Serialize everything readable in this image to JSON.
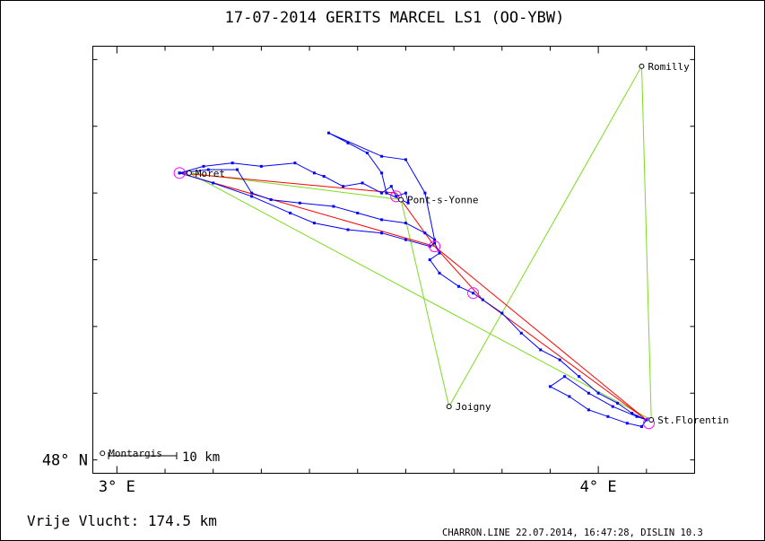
{
  "chart_data": {
    "type": "line",
    "title": "17-07-2014   GERITS MARCEL   LS1 (OO-YBW)",
    "x_ticks": [
      {
        "value": 3.0,
        "label": "3° E"
      },
      {
        "value": 4.0,
        "label": "4° E"
      }
    ],
    "y_ticks": [
      {
        "value": 48.0,
        "label": "48° N"
      }
    ],
    "xlim": [
      2.95,
      4.2
    ],
    "ylim": [
      47.98,
      48.62
    ],
    "scale_bar": {
      "label": "10 km",
      "length_km": 10
    },
    "places": [
      {
        "name": "Romilly",
        "lon": 4.09,
        "lat": 48.59
      },
      {
        "name": "Moret",
        "lon": 3.15,
        "lat": 48.43
      },
      {
        "name": "Pont-s-Yonne",
        "lon": 3.59,
        "lat": 48.39
      },
      {
        "name": "Joigny",
        "lon": 3.69,
        "lat": 48.08
      },
      {
        "name": "St.Florentin",
        "lon": 4.11,
        "lat": 48.06
      },
      {
        "name": "Montargis",
        "lon": 2.97,
        "lat": 48.01
      }
    ],
    "series": [
      {
        "type": "declared-task",
        "color": "#7ddc1f",
        "points": [
          {
            "lon": 3.15,
            "lat": 48.43
          },
          {
            "lon": 3.59,
            "lat": 48.39
          },
          {
            "lon": 3.69,
            "lat": 48.08
          },
          {
            "lon": 4.09,
            "lat": 48.59
          },
          {
            "lon": 4.11,
            "lat": 48.06
          },
          {
            "lon": 3.15,
            "lat": 48.43
          }
        ]
      },
      {
        "type": "optimised-route",
        "color": "#ff0000",
        "points": [
          {
            "lon": 3.13,
            "lat": 48.43
          },
          {
            "lon": 3.58,
            "lat": 48.4
          },
          {
            "lon": 3.66,
            "lat": 48.32
          },
          {
            "lon": 3.13,
            "lat": 48.43
          },
          {
            "lon": 3.66,
            "lat": 48.32
          },
          {
            "lon": 3.76,
            "lat": 48.24
          },
          {
            "lon": 4.1,
            "lat": 48.06
          },
          {
            "lon": 3.66,
            "lat": 48.32
          }
        ]
      },
      {
        "type": "flight-track",
        "color": "#0000ff",
        "points": [
          {
            "lon": 3.13,
            "lat": 48.43
          },
          {
            "lon": 3.18,
            "lat": 48.44
          },
          {
            "lon": 3.24,
            "lat": 48.445
          },
          {
            "lon": 3.3,
            "lat": 48.44
          },
          {
            "lon": 3.37,
            "lat": 48.445
          },
          {
            "lon": 3.41,
            "lat": 48.43
          },
          {
            "lon": 3.43,
            "lat": 48.425
          },
          {
            "lon": 3.47,
            "lat": 48.41
          },
          {
            "lon": 3.51,
            "lat": 48.415
          },
          {
            "lon": 3.55,
            "lat": 48.4
          },
          {
            "lon": 3.57,
            "lat": 48.41
          },
          {
            "lon": 3.58,
            "lat": 48.395
          },
          {
            "lon": 3.6,
            "lat": 48.4
          },
          {
            "lon": 3.605,
            "lat": 48.385
          },
          {
            "lon": 3.59,
            "lat": 48.39
          },
          {
            "lon": 3.56,
            "lat": 48.4
          },
          {
            "lon": 3.55,
            "lat": 48.43
          },
          {
            "lon": 3.52,
            "lat": 48.46
          },
          {
            "lon": 3.48,
            "lat": 48.475
          },
          {
            "lon": 3.44,
            "lat": 48.49
          },
          {
            "lon": 3.55,
            "lat": 48.455
          },
          {
            "lon": 3.6,
            "lat": 48.45
          },
          {
            "lon": 3.64,
            "lat": 48.4
          },
          {
            "lon": 3.66,
            "lat": 48.33
          },
          {
            "lon": 3.64,
            "lat": 48.34
          },
          {
            "lon": 3.6,
            "lat": 48.355
          },
          {
            "lon": 3.55,
            "lat": 48.36
          },
          {
            "lon": 3.5,
            "lat": 48.37
          },
          {
            "lon": 3.45,
            "lat": 48.38
          },
          {
            "lon": 3.38,
            "lat": 48.385
          },
          {
            "lon": 3.32,
            "lat": 48.39
          },
          {
            "lon": 3.28,
            "lat": 48.4
          },
          {
            "lon": 3.25,
            "lat": 48.435
          },
          {
            "lon": 3.19,
            "lat": 48.435
          },
          {
            "lon": 3.13,
            "lat": 48.43
          },
          {
            "lon": 3.2,
            "lat": 48.415
          },
          {
            "lon": 3.28,
            "lat": 48.395
          },
          {
            "lon": 3.36,
            "lat": 48.37
          },
          {
            "lon": 3.41,
            "lat": 48.355
          },
          {
            "lon": 3.48,
            "lat": 48.345
          },
          {
            "lon": 3.55,
            "lat": 48.34
          },
          {
            "lon": 3.6,
            "lat": 48.33
          },
          {
            "lon": 3.65,
            "lat": 48.32
          },
          {
            "lon": 3.66,
            "lat": 48.325
          },
          {
            "lon": 3.67,
            "lat": 48.31
          },
          {
            "lon": 3.65,
            "lat": 48.3
          },
          {
            "lon": 3.67,
            "lat": 48.28
          },
          {
            "lon": 3.71,
            "lat": 48.26
          },
          {
            "lon": 3.74,
            "lat": 48.25
          },
          {
            "lon": 3.76,
            "lat": 48.24
          },
          {
            "lon": 3.8,
            "lat": 48.22
          },
          {
            "lon": 3.84,
            "lat": 48.19
          },
          {
            "lon": 3.88,
            "lat": 48.165
          },
          {
            "lon": 3.92,
            "lat": 48.15
          },
          {
            "lon": 3.96,
            "lat": 48.125
          },
          {
            "lon": 4.0,
            "lat": 48.1
          },
          {
            "lon": 4.04,
            "lat": 48.085
          },
          {
            "lon": 4.07,
            "lat": 48.07
          },
          {
            "lon": 4.1,
            "lat": 48.06
          },
          {
            "lon": 4.09,
            "lat": 48.05
          },
          {
            "lon": 4.06,
            "lat": 48.055
          },
          {
            "lon": 4.02,
            "lat": 48.065
          },
          {
            "lon": 3.98,
            "lat": 48.075
          },
          {
            "lon": 3.94,
            "lat": 48.095
          },
          {
            "lon": 3.9,
            "lat": 48.11
          },
          {
            "lon": 3.93,
            "lat": 48.125
          },
          {
            "lon": 3.98,
            "lat": 48.1
          },
          {
            "lon": 4.03,
            "lat": 48.08
          },
          {
            "lon": 4.08,
            "lat": 48.065
          },
          {
            "lon": 4.1,
            "lat": 48.06
          },
          {
            "lon": 4.09,
            "lat": 48.05
          }
        ]
      }
    ],
    "turnpoint_circles": [
      {
        "lon": 3.13,
        "lat": 48.43
      },
      {
        "lon": 3.58,
        "lat": 48.395
      },
      {
        "lon": 3.66,
        "lat": 48.32
      },
      {
        "lon": 3.74,
        "lat": 48.25
      },
      {
        "lon": 4.105,
        "lat": 48.055
      }
    ]
  },
  "footer": {
    "distance_text": "Vrije Vlucht:  174.5 km",
    "credit": "CHARRON.LINE 22.07.2014, 16:47:28, DISLIN 10.3"
  }
}
